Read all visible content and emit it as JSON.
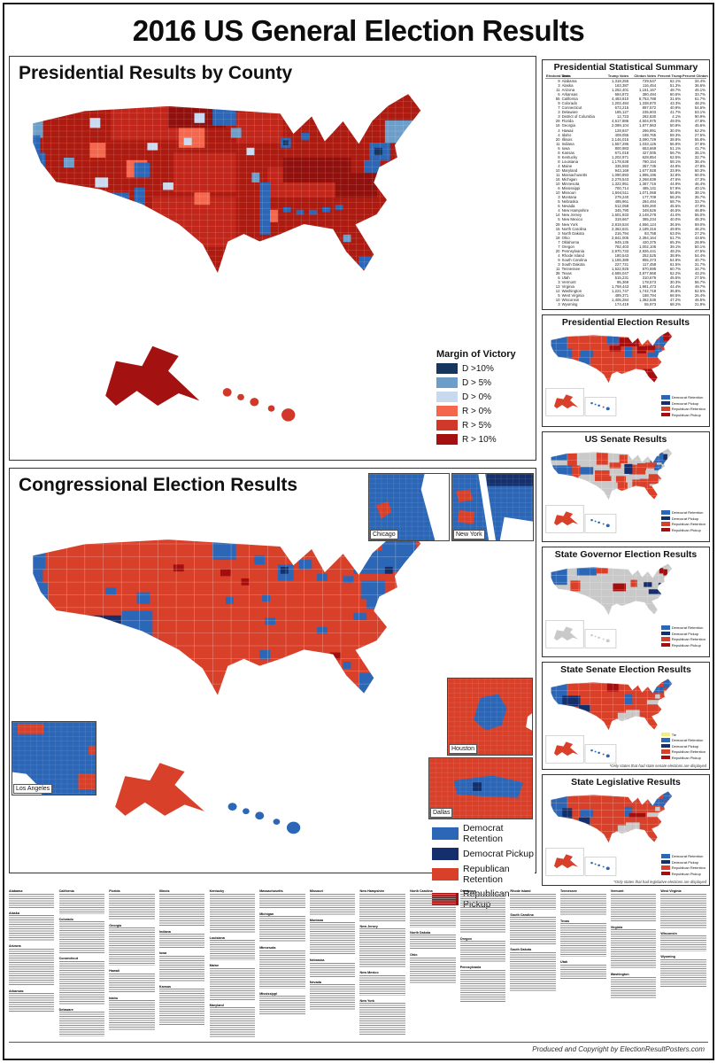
{
  "poster": {
    "title": "2016 US General Election Results",
    "credit": "Produced and Copyright by ElectionResultPosters.com"
  },
  "palette": {
    "demR": "#2c66b6",
    "demP": "#142f6b",
    "repR": "#d8402a",
    "repP": "#a50e0e",
    "none": "#c9c9c9",
    "tie": "#f3ee7c",
    "m_d10": "#17365d",
    "m_d5": "#6d9eca",
    "m_d0": "#c9daf0",
    "m_r0": "#f4674d",
    "m_r5": "#d0392a",
    "m_r10": "#a31111",
    "county_base": "#ad1a10",
    "red2": "#c2261a",
    "red3": "#8f100c",
    "water": "#ffffff"
  },
  "county_panel": {
    "title": "Presidential Results by County",
    "legend": {
      "title": "Margin of Victory",
      "items": [
        {
          "label": "D >10%",
          "color": "#17365d"
        },
        {
          "label": "D > 5%",
          "color": "#6d9eca"
        },
        {
          "label": "D > 0%",
          "color": "#c9daf0"
        },
        {
          "label": "R > 0%",
          "color": "#f4674d"
        },
        {
          "label": "R > 5%",
          "color": "#d0392a"
        },
        {
          "label": "R > 10%",
          "color": "#a31111"
        }
      ]
    }
  },
  "congress_panel": {
    "title": "Congressional Election Results",
    "insets": {
      "chicago": "Chicago",
      "new_york": "New York",
      "houston": "Houston",
      "dallas": "Dallas",
      "los_angeles": "Los Angeles"
    }
  },
  "legends": {
    "party4": [
      {
        "label": "Democrat Retention",
        "color": "#2c66b6"
      },
      {
        "label": "Democrat Pickup",
        "color": "#142f6b"
      },
      {
        "label": "Republican Retention",
        "color": "#d8402a"
      },
      {
        "label": "Republican Pickup",
        "color": "#a50e0e"
      }
    ],
    "party5": [
      {
        "label": "Tie",
        "color": "#f3ee7c"
      },
      {
        "label": "Democrat Retention",
        "color": "#2c66b6"
      },
      {
        "label": "Democrat Pickup",
        "color": "#142f6b"
      },
      {
        "label": "Republican Retention",
        "color": "#d8402a"
      },
      {
        "label": "Republican Pickup",
        "color": "#a50e0e"
      }
    ]
  },
  "stats": {
    "title": "Presidential Statistical Summary",
    "columns": [
      "Electoral Votes",
      "State",
      "Trump Votes",
      "Clinton Votes",
      "Percent Trump",
      "Percent Clinton"
    ],
    "rows": [
      [
        9,
        "Alabama",
        "1,318,255",
        "729,547",
        "62.1%",
        "34.4%"
      ],
      [
        3,
        "Alaska",
        "163,387",
        "116,454",
        "51.3%",
        "36.6%"
      ],
      [
        11,
        "Arizona",
        "1,252,401",
        "1,161,167",
        "48.7%",
        "45.1%"
      ],
      [
        6,
        "Arkansas",
        "684,872",
        "380,494",
        "60.6%",
        "33.7%"
      ],
      [
        55,
        "California",
        "4,483,810",
        "8,753,788",
        "31.6%",
        "61.7%"
      ],
      [
        9,
        "Colorado",
        "1,202,484",
        "1,338,870",
        "43.3%",
        "48.2%"
      ],
      [
        7,
        "Connecticut",
        "673,215",
        "897,572",
        "40.9%",
        "54.6%"
      ],
      [
        3,
        "Delaware",
        "185,127",
        "235,603",
        "41.7%",
        "53.1%"
      ],
      [
        3,
        "District of Columbia",
        "12,723",
        "282,830",
        "4.1%",
        "90.9%"
      ],
      [
        29,
        "Florida",
        "4,617,886",
        "4,504,975",
        "49.0%",
        "47.8%"
      ],
      [
        16,
        "Georgia",
        "2,089,104",
        "1,877,963",
        "50.8%",
        "45.6%"
      ],
      [
        4,
        "Hawaii",
        "128,847",
        "266,891",
        "30.0%",
        "62.2%"
      ],
      [
        4,
        "Idaho",
        "409,055",
        "189,765",
        "59.3%",
        "27.5%"
      ],
      [
        20,
        "Illinois",
        "2,146,015",
        "3,090,729",
        "38.8%",
        "55.8%"
      ],
      [
        11,
        "Indiana",
        "1,557,286",
        "1,033,126",
        "56.8%",
        "37.8%"
      ],
      [
        6,
        "Iowa",
        "800,983",
        "653,669",
        "51.1%",
        "41.7%"
      ],
      [
        6,
        "Kansas",
        "671,018",
        "427,005",
        "56.7%",
        "36.1%"
      ],
      [
        8,
        "Kentucky",
        "1,202,971",
        "628,854",
        "62.5%",
        "32.7%"
      ],
      [
        8,
        "Louisiana",
        "1,178,638",
        "780,154",
        "58.1%",
        "38.4%"
      ],
      [
        4,
        "Maine",
        "335,593",
        "357,735",
        "44.9%",
        "47.8%"
      ],
      [
        10,
        "Maryland",
        "943,169",
        "1,677,928",
        "33.9%",
        "60.3%"
      ],
      [
        11,
        "Massachusetts",
        "1,090,893",
        "1,995,196",
        "32.8%",
        "60.0%"
      ],
      [
        16,
        "Michigan",
        "2,279,543",
        "2,268,839",
        "47.5%",
        "47.3%"
      ],
      [
        10,
        "Minnesota",
        "1,322,951",
        "1,367,716",
        "44.9%",
        "46.4%"
      ],
      [
        6,
        "Mississippi",
        "700,714",
        "485,131",
        "57.9%",
        "40.1%"
      ],
      [
        10,
        "Missouri",
        "1,594,511",
        "1,071,068",
        "56.8%",
        "38.1%"
      ],
      [
        3,
        "Montana",
        "279,240",
        "177,709",
        "56.2%",
        "35.7%"
      ],
      [
        5,
        "Nebraska",
        "495,961",
        "284,494",
        "58.7%",
        "33.7%"
      ],
      [
        6,
        "Nevada",
        "512,058",
        "539,260",
        "45.5%",
        "47.9%"
      ],
      [
        4,
        "New Hampshire",
        "345,790",
        "348,526",
        "46.5%",
        "46.8%"
      ],
      [
        14,
        "New Jersey",
        "1,601,933",
        "2,148,278",
        "41.0%",
        "55.0%"
      ],
      [
        5,
        "New Mexico",
        "319,667",
        "385,234",
        "40.0%",
        "48.3%"
      ],
      [
        29,
        "New York",
        "2,819,534",
        "4,556,124",
        "36.5%",
        "59.0%"
      ],
      [
        15,
        "North Carolina",
        "2,362,631",
        "2,189,316",
        "49.8%",
        "46.2%"
      ],
      [
        3,
        "North Dakota",
        "216,794",
        "93,758",
        "63.0%",
        "27.2%"
      ],
      [
        18,
        "Ohio",
        "2,841,005",
        "2,394,164",
        "51.7%",
        "43.6%"
      ],
      [
        7,
        "Oklahoma",
        "949,136",
        "420,375",
        "65.3%",
        "28.9%"
      ],
      [
        7,
        "Oregon",
        "782,403",
        "1,002,106",
        "39.1%",
        "50.1%"
      ],
      [
        20,
        "Pennsylvania",
        "2,970,733",
        "2,926,441",
        "48.2%",
        "47.5%"
      ],
      [
        4,
        "Rhode Island",
        "180,543",
        "252,525",
        "38.9%",
        "54.4%"
      ],
      [
        9,
        "South Carolina",
        "1,155,389",
        "855,373",
        "54.9%",
        "40.7%"
      ],
      [
        3,
        "South Dakota",
        "227,721",
        "117,458",
        "61.5%",
        "31.7%"
      ],
      [
        11,
        "Tennessee",
        "1,522,925",
        "870,695",
        "60.7%",
        "34.7%"
      ],
      [
        38,
        "Texas",
        "4,685,047",
        "3,877,868",
        "52.2%",
        "43.2%"
      ],
      [
        6,
        "Utah",
        "515,231",
        "310,676",
        "45.5%",
        "27.5%"
      ],
      [
        3,
        "Vermont",
        "95,369",
        "178,573",
        "30.3%",
        "56.7%"
      ],
      [
        13,
        "Virginia",
        "1,769,443",
        "1,981,473",
        "44.4%",
        "49.7%"
      ],
      [
        12,
        "Washington",
        "1,221,747",
        "1,742,718",
        "36.8%",
        "52.5%"
      ],
      [
        5,
        "West Virginia",
        "489,371",
        "188,794",
        "68.5%",
        "26.4%"
      ],
      [
        10,
        "Wisconsin",
        "1,405,284",
        "1,382,536",
        "47.2%",
        "46.5%"
      ],
      [
        3,
        "Wyoming",
        "174,419",
        "55,973",
        "68.2%",
        "21.9%"
      ]
    ]
  },
  "side_maps": [
    {
      "title": "Presidential Election Results"
    },
    {
      "title": "US Senate Results"
    },
    {
      "title": "State Governor Election Results"
    },
    {
      "title": "State Senate Election Results",
      "footnote": "*Only states that had state senate elections are displayed"
    },
    {
      "title": "State Legislative Results",
      "footnote": "*Only states that had legislative elections are displayed"
    }
  ],
  "fine_print": {
    "columns": [
      [
        "Alabama",
        "Alaska",
        "Arizona",
        "Arkansas"
      ],
      [
        "California",
        "Colorado",
        "Connecticut",
        "Delaware"
      ],
      [
        "Florida",
        "Georgia",
        "Hawaii",
        "Idaho"
      ],
      [
        "Illinois",
        "Indiana",
        "Iowa",
        "Kansas"
      ],
      [
        "Kentucky",
        "Louisiana",
        "Maine",
        "Maryland"
      ],
      [
        "Massachusetts",
        "Michigan",
        "Minnesota",
        "Mississippi"
      ],
      [
        "Missouri",
        "Montana",
        "Nebraska",
        "Nevada"
      ],
      [
        "New Hampshire",
        "New Jersey",
        "New Mexico",
        "New York"
      ],
      [
        "North Carolina",
        "North Dakota",
        "Ohio"
      ],
      [
        "Oklahoma",
        "Oregon",
        "Pennsylvania"
      ],
      [
        "Rhode Island",
        "South Carolina",
        "South Dakota"
      ],
      [
        "Tennessee",
        "Texas",
        "Utah"
      ],
      [
        "Vermont",
        "Virginia",
        "Washington"
      ],
      [
        "West Virginia",
        "Wisconsin",
        "Wyoming"
      ]
    ]
  }
}
